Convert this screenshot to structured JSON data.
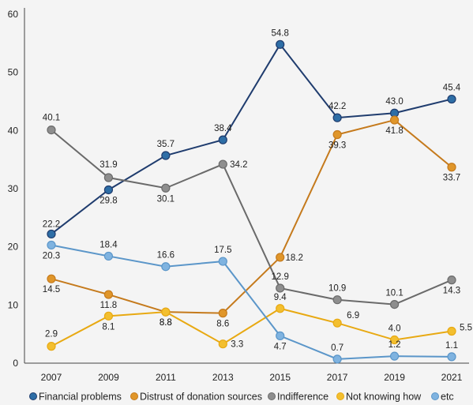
{
  "chart_data": {
    "type": "line",
    "title": "",
    "xlabel": "",
    "ylabel": "",
    "x": [
      "2007",
      "2009",
      "2011",
      "2013",
      "2015",
      "2017",
      "2019",
      "2021"
    ],
    "ylim": [
      0,
      60
    ],
    "yticks": [
      "0",
      "10",
      "20",
      "30",
      "40",
      "50",
      "60"
    ],
    "grid": false,
    "legend_position": "bottom",
    "series": [
      {
        "name": "Financial problems",
        "color": "#1f3c6e",
        "marker_color": "#2e6ea6",
        "values": [
          22.2,
          29.8,
          35.7,
          38.4,
          54.8,
          42.2,
          43.0,
          45.4
        ],
        "labels": [
          "22.2",
          "29.8",
          "35.7",
          "38.4",
          "54.8",
          "42.2",
          "43.0",
          "45.4"
        ]
      },
      {
        "name": "Distrust of donation sources",
        "color": "#c57a1c",
        "marker_color": "#e0962a",
        "values": [
          14.5,
          11.8,
          8.8,
          8.6,
          18.2,
          39.3,
          41.8,
          33.7
        ],
        "labels": [
          "14.5",
          "11.8",
          "8.8",
          "8.6",
          "18.2",
          "39.3",
          "41.8",
          "33.7"
        ]
      },
      {
        "name": "Indifference",
        "color": "#6a6a6a",
        "marker_color": "#8e8e8e",
        "values": [
          40.1,
          31.9,
          30.1,
          34.2,
          12.9,
          10.9,
          10.1,
          14.3
        ],
        "labels": [
          "40.1",
          "31.9",
          "30.1",
          "34.2",
          "12.9",
          "10.9",
          "10.1",
          "14.3"
        ]
      },
      {
        "name": "Not knowing how",
        "color": "#e8a912",
        "marker_color": "#f3bf2f",
        "values": [
          2.9,
          8.1,
          8.8,
          3.3,
          9.4,
          6.9,
          4.0,
          5.5
        ],
        "labels": [
          "2.9",
          "8.1",
          "8.8",
          "3.3",
          "9.4",
          "6.9",
          "4.0",
          "5.5"
        ]
      },
      {
        "name": "etc",
        "color": "#5b96c9",
        "marker_color": "#7fb3e0",
        "values": [
          20.3,
          18.4,
          16.6,
          17.5,
          4.7,
          0.7,
          1.2,
          1.1
        ],
        "labels": [
          "20.3",
          "18.4",
          "16.6",
          "17.5",
          "4.7",
          "0.7",
          "1.2",
          "1.1"
        ]
      }
    ]
  }
}
